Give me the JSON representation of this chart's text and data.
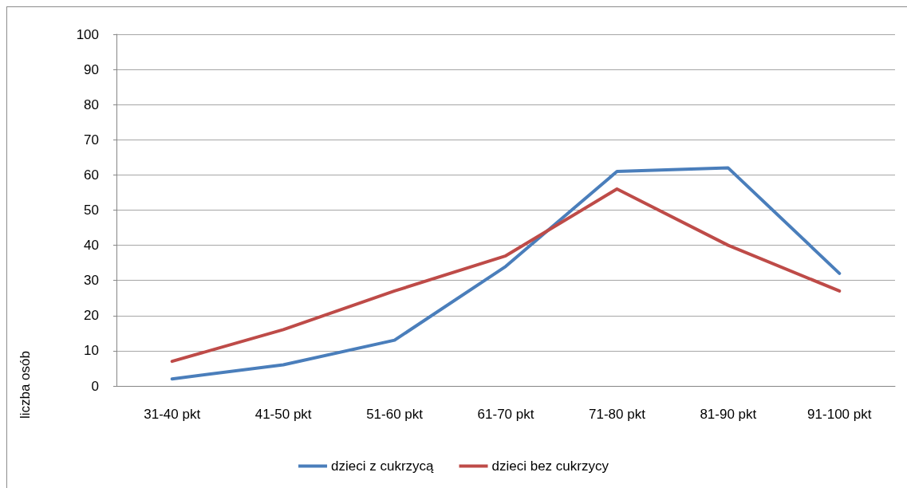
{
  "chart_data": {
    "type": "line",
    "ylabel": "liczba osób",
    "categories": [
      "31-40 pkt",
      "41-50 pkt",
      "51-60 pkt",
      "61-70 pkt",
      "71-80 pkt",
      "81-90 pkt",
      "91-100 pkt"
    ],
    "series": [
      {
        "name": "dzieci z cukrzycą",
        "color": "#4a7ebb",
        "values": [
          2,
          6,
          13,
          34,
          61,
          62,
          32
        ]
      },
      {
        "name": "dzieci bez cukrzycy",
        "color": "#be4b48",
        "values": [
          7,
          16,
          27,
          37,
          56,
          40,
          27
        ]
      }
    ],
    "ylim": [
      0,
      100
    ],
    "yticks": [
      0,
      10,
      20,
      30,
      40,
      50,
      60,
      70,
      80,
      90,
      100
    ],
    "grid": "y",
    "legend": "bottom",
    "marker": "none",
    "line_style": "solid"
  }
}
